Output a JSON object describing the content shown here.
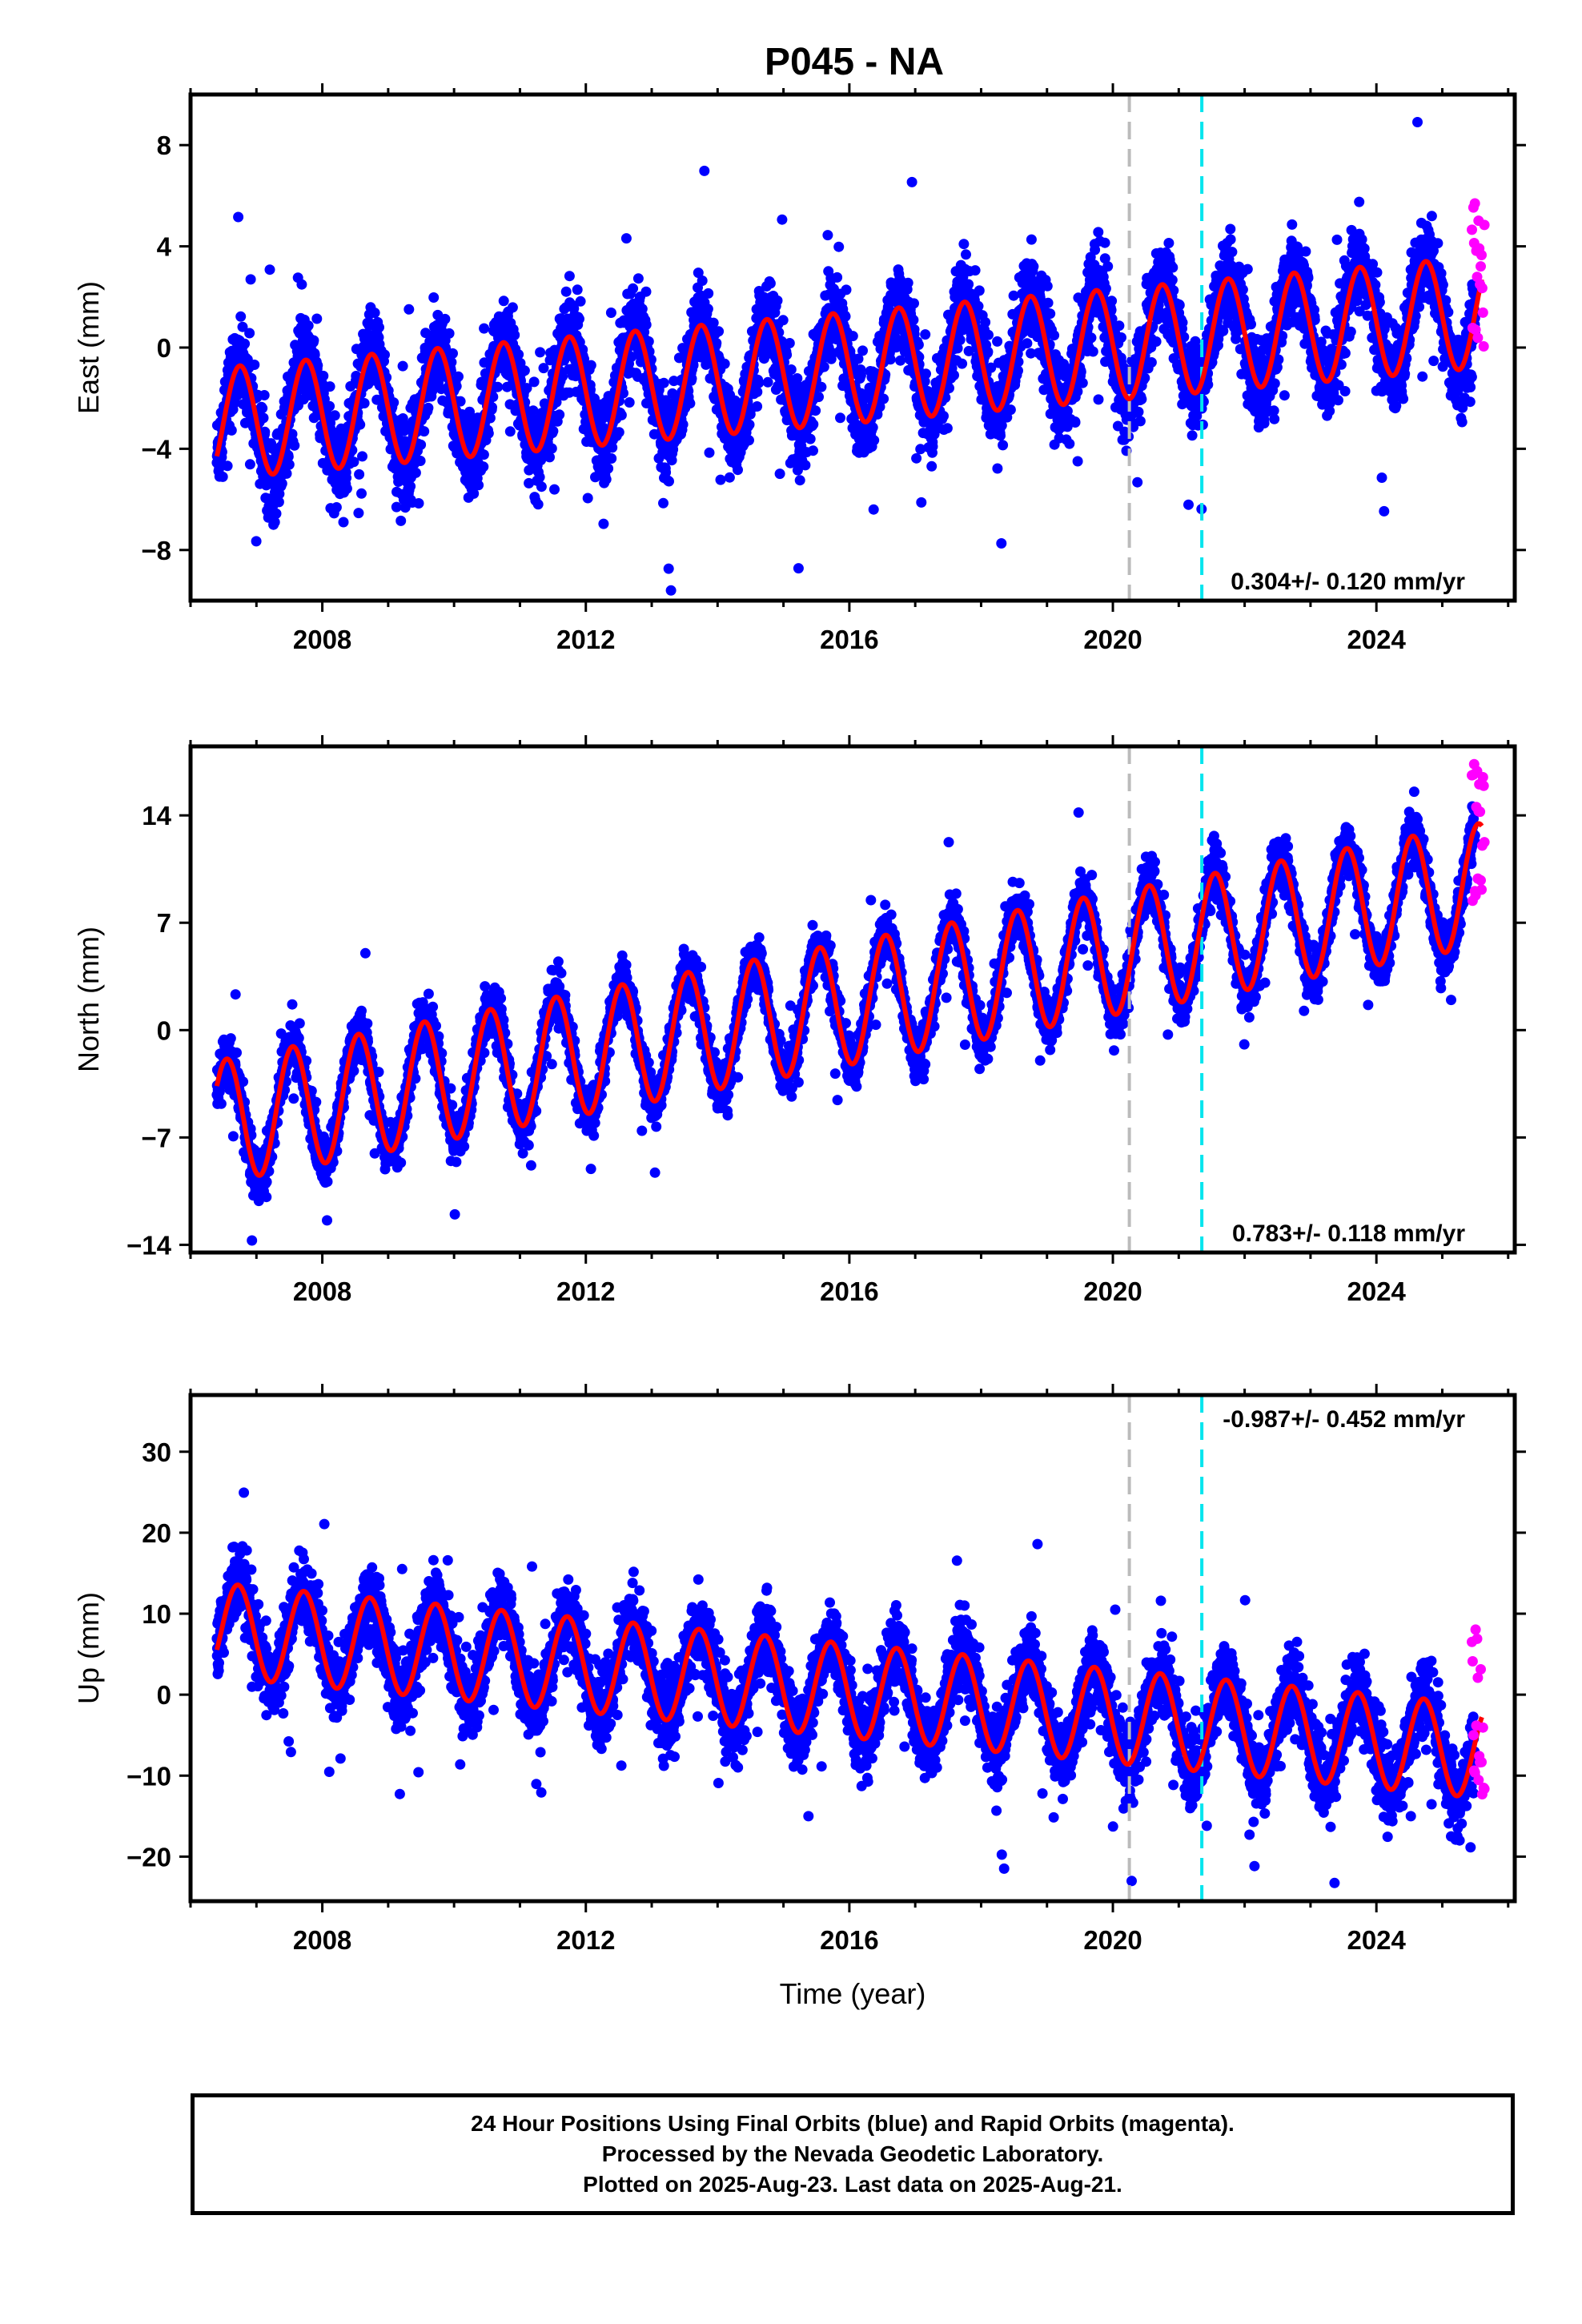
{
  "page": {
    "title": "P045 - NA"
  },
  "chart_data": [
    {
      "type": "scatter",
      "ylabel": "East (mm)",
      "xlabel": "",
      "xlim": [
        2006.0,
        2026.1
      ],
      "ylim": [
        -10,
        10
      ],
      "xticks": [
        2008,
        2012,
        2016,
        2020,
        2024
      ],
      "yticks": [
        -8,
        -4,
        0,
        4,
        8
      ],
      "rate_label": "0.304+/- 0.120 mm/yr",
      "rate_position": "bottom-right",
      "trend": {
        "start": 2006.4,
        "end": 2025.6,
        "mean_start": -3.0,
        "mean_end": 1.4,
        "amplitude": 2.2,
        "peak_phase": 0.75,
        "scatter": 1.5
      },
      "rapid": {
        "start": 2025.45,
        "end": 2025.64,
        "min": -0.6,
        "max": 5.9
      },
      "reference_lines": [
        {
          "x": 2020.25,
          "color": "#bbbbbb"
        },
        {
          "x": 2021.35,
          "color": "#00e5ee"
        }
      ]
    },
    {
      "type": "scatter",
      "ylabel": "North (mm)",
      "xlabel": "",
      "xlim": [
        2006.0,
        2026.1
      ],
      "ylim": [
        -14.5,
        18.5
      ],
      "xticks": [
        2008,
        2012,
        2016,
        2020,
        2024
      ],
      "yticks": [
        -14,
        -7,
        0,
        7,
        14
      ],
      "rate_label": "0.783+/- 0.118 mm/yr",
      "rate_position": "bottom-right",
      "trend": {
        "start": 2006.4,
        "end": 2025.6,
        "mean_start": -6.0,
        "mean_end": 9.5,
        "amplitude": 4.0,
        "peak_phase": 0.55,
        "scatter": 1.4
      },
      "rapid": {
        "start": 2025.45,
        "end": 2025.64,
        "min": 7.7,
        "max": 18.2
      },
      "reference_lines": [
        {
          "x": 2020.25,
          "color": "#bbbbbb"
        },
        {
          "x": 2021.35,
          "color": "#00e5ee"
        }
      ]
    },
    {
      "type": "scatter",
      "ylabel": "Up (mm)",
      "xlabel": "Time (year)",
      "xlim": [
        2006.0,
        2026.1
      ],
      "ylim": [
        -25.5,
        37
      ],
      "xticks": [
        2008,
        2012,
        2016,
        2020,
        2024
      ],
      "yticks": [
        -20,
        -10,
        0,
        10,
        20,
        30
      ],
      "rate_label": "-0.987+/- 0.452 mm/yr",
      "rate_position": "top-right",
      "trend": {
        "start": 2006.4,
        "end": 2025.6,
        "mean_start": 8.0,
        "mean_end": -7.0,
        "amplitude": 5.8,
        "peak_phase": 0.72,
        "scatter": 4.0
      },
      "rapid": {
        "start": 2025.45,
        "end": 2025.64,
        "min": -14.0,
        "max": 9.0
      },
      "reference_lines": [
        {
          "x": 2020.25,
          "color": "#bbbbbb"
        },
        {
          "x": 2021.35,
          "color": "#00e5ee"
        }
      ]
    }
  ],
  "colors": {
    "final_orbits": "#0000ff",
    "rapid_orbits": "#ff00ff",
    "model": "#ff0000"
  },
  "footer": {
    "line1": "24 Hour Positions Using Final Orbits (blue) and Rapid Orbits (magenta).",
    "line2": "Processed by the Nevada Geodetic Laboratory.",
    "line3": "Plotted on 2025-Aug-23. Last data on 2025-Aug-21."
  }
}
